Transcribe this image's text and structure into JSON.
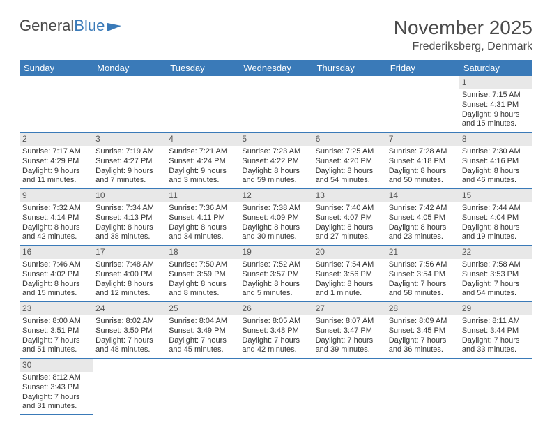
{
  "brand": {
    "part1": "General",
    "part2": "Blue"
  },
  "title": "November 2025",
  "location": "Frederiksberg, Denmark",
  "colors": {
    "header_bg": "#3a7ab8",
    "header_text": "#ffffff",
    "daynum_bg": "#e8e8e8",
    "border": "#3a7ab8",
    "text": "#333333",
    "page_bg": "#ffffff"
  },
  "typography": {
    "title_fontsize": 28,
    "location_fontsize": 16,
    "header_fontsize": 13,
    "cell_fontsize": 11
  },
  "columns": [
    "Sunday",
    "Monday",
    "Tuesday",
    "Wednesday",
    "Thursday",
    "Friday",
    "Saturday"
  ],
  "weeks": [
    [
      {
        "day": "",
        "lines": [
          "",
          "",
          "",
          ""
        ]
      },
      {
        "day": "",
        "lines": [
          "",
          "",
          "",
          ""
        ]
      },
      {
        "day": "",
        "lines": [
          "",
          "",
          "",
          ""
        ]
      },
      {
        "day": "",
        "lines": [
          "",
          "",
          "",
          ""
        ]
      },
      {
        "day": "",
        "lines": [
          "",
          "",
          "",
          ""
        ]
      },
      {
        "day": "",
        "lines": [
          "",
          "",
          "",
          ""
        ]
      },
      {
        "day": "1",
        "lines": [
          "Sunrise: 7:15 AM",
          "Sunset: 4:31 PM",
          "Daylight: 9 hours",
          "and 15 minutes."
        ]
      }
    ],
    [
      {
        "day": "2",
        "lines": [
          "Sunrise: 7:17 AM",
          "Sunset: 4:29 PM",
          "Daylight: 9 hours",
          "and 11 minutes."
        ]
      },
      {
        "day": "3",
        "lines": [
          "Sunrise: 7:19 AM",
          "Sunset: 4:27 PM",
          "Daylight: 9 hours",
          "and 7 minutes."
        ]
      },
      {
        "day": "4",
        "lines": [
          "Sunrise: 7:21 AM",
          "Sunset: 4:24 PM",
          "Daylight: 9 hours",
          "and 3 minutes."
        ]
      },
      {
        "day": "5",
        "lines": [
          "Sunrise: 7:23 AM",
          "Sunset: 4:22 PM",
          "Daylight: 8 hours",
          "and 59 minutes."
        ]
      },
      {
        "day": "6",
        "lines": [
          "Sunrise: 7:25 AM",
          "Sunset: 4:20 PM",
          "Daylight: 8 hours",
          "and 54 minutes."
        ]
      },
      {
        "day": "7",
        "lines": [
          "Sunrise: 7:28 AM",
          "Sunset: 4:18 PM",
          "Daylight: 8 hours",
          "and 50 minutes."
        ]
      },
      {
        "day": "8",
        "lines": [
          "Sunrise: 7:30 AM",
          "Sunset: 4:16 PM",
          "Daylight: 8 hours",
          "and 46 minutes."
        ]
      }
    ],
    [
      {
        "day": "9",
        "lines": [
          "Sunrise: 7:32 AM",
          "Sunset: 4:14 PM",
          "Daylight: 8 hours",
          "and 42 minutes."
        ]
      },
      {
        "day": "10",
        "lines": [
          "Sunrise: 7:34 AM",
          "Sunset: 4:13 PM",
          "Daylight: 8 hours",
          "and 38 minutes."
        ]
      },
      {
        "day": "11",
        "lines": [
          "Sunrise: 7:36 AM",
          "Sunset: 4:11 PM",
          "Daylight: 8 hours",
          "and 34 minutes."
        ]
      },
      {
        "day": "12",
        "lines": [
          "Sunrise: 7:38 AM",
          "Sunset: 4:09 PM",
          "Daylight: 8 hours",
          "and 30 minutes."
        ]
      },
      {
        "day": "13",
        "lines": [
          "Sunrise: 7:40 AM",
          "Sunset: 4:07 PM",
          "Daylight: 8 hours",
          "and 27 minutes."
        ]
      },
      {
        "day": "14",
        "lines": [
          "Sunrise: 7:42 AM",
          "Sunset: 4:05 PM",
          "Daylight: 8 hours",
          "and 23 minutes."
        ]
      },
      {
        "day": "15",
        "lines": [
          "Sunrise: 7:44 AM",
          "Sunset: 4:04 PM",
          "Daylight: 8 hours",
          "and 19 minutes."
        ]
      }
    ],
    [
      {
        "day": "16",
        "lines": [
          "Sunrise: 7:46 AM",
          "Sunset: 4:02 PM",
          "Daylight: 8 hours",
          "and 15 minutes."
        ]
      },
      {
        "day": "17",
        "lines": [
          "Sunrise: 7:48 AM",
          "Sunset: 4:00 PM",
          "Daylight: 8 hours",
          "and 12 minutes."
        ]
      },
      {
        "day": "18",
        "lines": [
          "Sunrise: 7:50 AM",
          "Sunset: 3:59 PM",
          "Daylight: 8 hours",
          "and 8 minutes."
        ]
      },
      {
        "day": "19",
        "lines": [
          "Sunrise: 7:52 AM",
          "Sunset: 3:57 PM",
          "Daylight: 8 hours",
          "and 5 minutes."
        ]
      },
      {
        "day": "20",
        "lines": [
          "Sunrise: 7:54 AM",
          "Sunset: 3:56 PM",
          "Daylight: 8 hours",
          "and 1 minute."
        ]
      },
      {
        "day": "21",
        "lines": [
          "Sunrise: 7:56 AM",
          "Sunset: 3:54 PM",
          "Daylight: 7 hours",
          "and 58 minutes."
        ]
      },
      {
        "day": "22",
        "lines": [
          "Sunrise: 7:58 AM",
          "Sunset: 3:53 PM",
          "Daylight: 7 hours",
          "and 54 minutes."
        ]
      }
    ],
    [
      {
        "day": "23",
        "lines": [
          "Sunrise: 8:00 AM",
          "Sunset: 3:51 PM",
          "Daylight: 7 hours",
          "and 51 minutes."
        ]
      },
      {
        "day": "24",
        "lines": [
          "Sunrise: 8:02 AM",
          "Sunset: 3:50 PM",
          "Daylight: 7 hours",
          "and 48 minutes."
        ]
      },
      {
        "day": "25",
        "lines": [
          "Sunrise: 8:04 AM",
          "Sunset: 3:49 PM",
          "Daylight: 7 hours",
          "and 45 minutes."
        ]
      },
      {
        "day": "26",
        "lines": [
          "Sunrise: 8:05 AM",
          "Sunset: 3:48 PM",
          "Daylight: 7 hours",
          "and 42 minutes."
        ]
      },
      {
        "day": "27",
        "lines": [
          "Sunrise: 8:07 AM",
          "Sunset: 3:47 PM",
          "Daylight: 7 hours",
          "and 39 minutes."
        ]
      },
      {
        "day": "28",
        "lines": [
          "Sunrise: 8:09 AM",
          "Sunset: 3:45 PM",
          "Daylight: 7 hours",
          "and 36 minutes."
        ]
      },
      {
        "day": "29",
        "lines": [
          "Sunrise: 8:11 AM",
          "Sunset: 3:44 PM",
          "Daylight: 7 hours",
          "and 33 minutes."
        ]
      }
    ],
    [
      {
        "day": "30",
        "lines": [
          "Sunrise: 8:12 AM",
          "Sunset: 3:43 PM",
          "Daylight: 7 hours",
          "and 31 minutes."
        ]
      },
      {
        "day": "",
        "lines": [
          "",
          "",
          "",
          ""
        ]
      },
      {
        "day": "",
        "lines": [
          "",
          "",
          "",
          ""
        ]
      },
      {
        "day": "",
        "lines": [
          "",
          "",
          "",
          ""
        ]
      },
      {
        "day": "",
        "lines": [
          "",
          "",
          "",
          ""
        ]
      },
      {
        "day": "",
        "lines": [
          "",
          "",
          "",
          ""
        ]
      },
      {
        "day": "",
        "lines": [
          "",
          "",
          "",
          ""
        ]
      }
    ]
  ]
}
